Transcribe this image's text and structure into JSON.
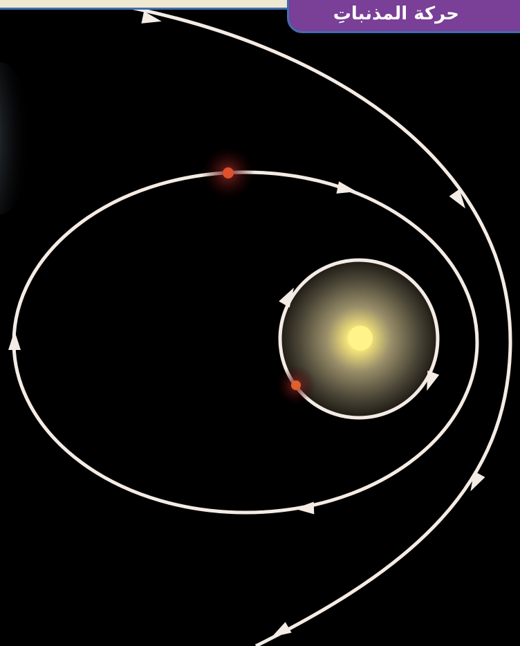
{
  "header": {
    "title": "حركة المذنباتِ"
  }
}
